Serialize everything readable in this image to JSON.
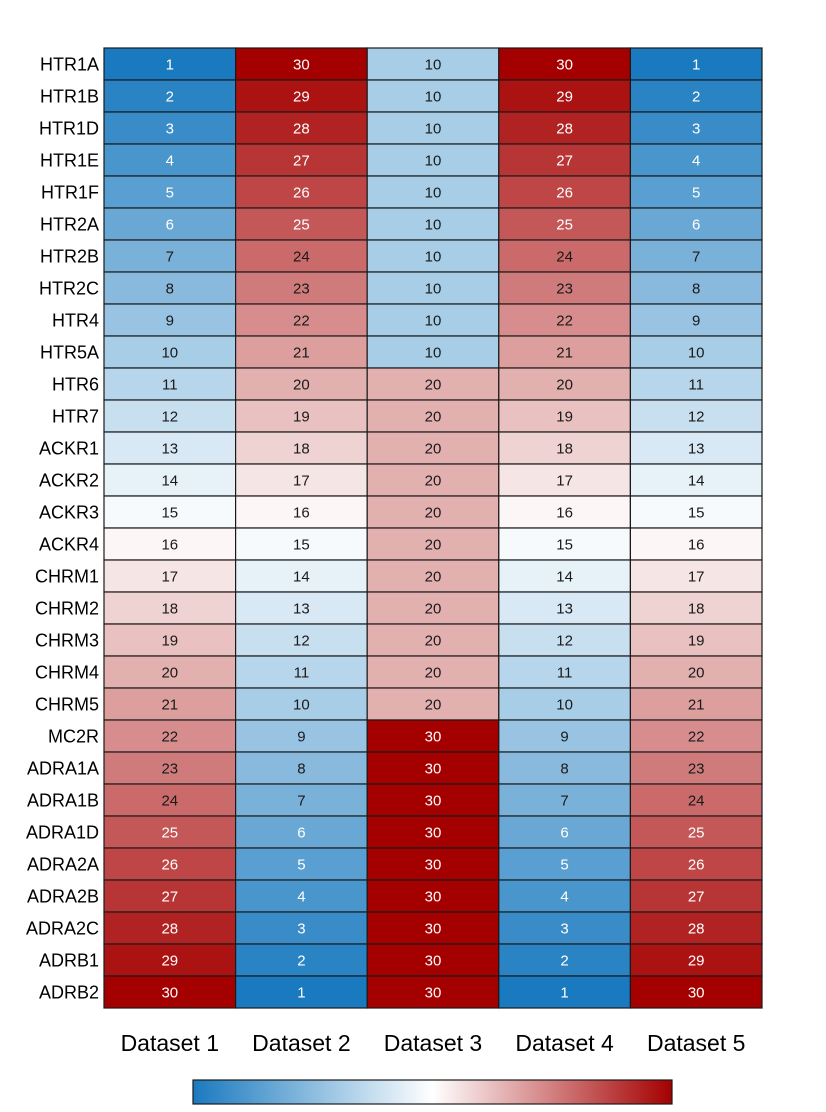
{
  "chart_data": {
    "type": "heatmap",
    "rows": [
      "HTR1A",
      "HTR1B",
      "HTR1D",
      "HTR1E",
      "HTR1F",
      "HTR2A",
      "HTR2B",
      "HTR2C",
      "HTR4",
      "HTR5A",
      "HTR6",
      "HTR7",
      "ACKR1",
      "ACKR2",
      "ACKR3",
      "ACKR4",
      "CHRM1",
      "CHRM2",
      "CHRM3",
      "CHRM4",
      "CHRM5",
      "MC2R",
      "ADRA1A",
      "ADRA1B",
      "ADRA1D",
      "ADRA2A",
      "ADRA2B",
      "ADRA2C",
      "ADRB1",
      "ADRB2"
    ],
    "columns": [
      "Dataset 1",
      "Dataset 2",
      "Dataset 3",
      "Dataset 4",
      "Dataset 5"
    ],
    "values": [
      [
        1,
        30,
        10,
        30,
        1
      ],
      [
        2,
        29,
        10,
        29,
        2
      ],
      [
        3,
        28,
        10,
        28,
        3
      ],
      [
        4,
        27,
        10,
        27,
        4
      ],
      [
        5,
        26,
        10,
        26,
        5
      ],
      [
        6,
        25,
        10,
        25,
        6
      ],
      [
        7,
        24,
        10,
        24,
        7
      ],
      [
        8,
        23,
        10,
        23,
        8
      ],
      [
        9,
        22,
        10,
        22,
        9
      ],
      [
        10,
        21,
        10,
        21,
        10
      ],
      [
        11,
        20,
        20,
        20,
        11
      ],
      [
        12,
        19,
        20,
        19,
        12
      ],
      [
        13,
        18,
        20,
        18,
        13
      ],
      [
        14,
        17,
        20,
        17,
        14
      ],
      [
        15,
        16,
        20,
        16,
        15
      ],
      [
        16,
        15,
        20,
        15,
        16
      ],
      [
        17,
        14,
        20,
        14,
        17
      ],
      [
        18,
        13,
        20,
        13,
        18
      ],
      [
        19,
        12,
        20,
        12,
        19
      ],
      [
        20,
        11,
        20,
        11,
        20
      ],
      [
        21,
        10,
        20,
        10,
        21
      ],
      [
        22,
        9,
        30,
        9,
        22
      ],
      [
        23,
        8,
        30,
        8,
        23
      ],
      [
        24,
        7,
        30,
        7,
        24
      ],
      [
        25,
        6,
        30,
        6,
        25
      ],
      [
        26,
        5,
        30,
        5,
        26
      ],
      [
        27,
        4,
        30,
        4,
        27
      ],
      [
        28,
        3,
        30,
        3,
        28
      ],
      [
        29,
        2,
        30,
        2,
        29
      ],
      [
        30,
        1,
        30,
        1,
        30
      ]
    ],
    "value_range": [
      1,
      30
    ],
    "colormap": {
      "low": "#1a7abf",
      "mid": "#ffffff",
      "high": "#a50000"
    },
    "colorbar": "bottom, horizontal, no tick labels",
    "grid": true
  }
}
